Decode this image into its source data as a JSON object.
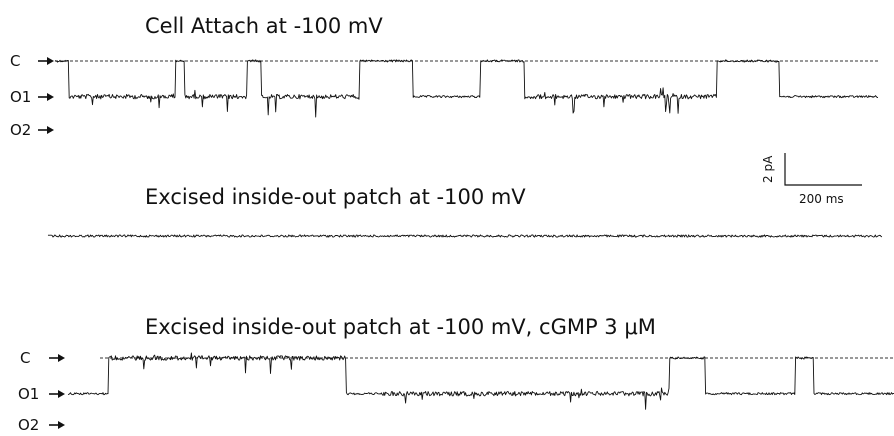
{
  "chart_data": [
    {
      "type": "line",
      "title": "Cell Attach at -100 mV",
      "levels": [
        "C",
        "O1",
        "O2"
      ],
      "level_current_pA": [
        0,
        -2.3,
        -4.6
      ],
      "segments_ms": [
        {
          "start": 0,
          "end": 30,
          "state": "C"
        },
        {
          "start": 30,
          "end": 270,
          "state": "O1",
          "noisy": true
        },
        {
          "start": 270,
          "end": 290,
          "state": "C"
        },
        {
          "start": 290,
          "end": 430,
          "state": "O1",
          "noisy": true
        },
        {
          "start": 430,
          "end": 460,
          "state": "C"
        },
        {
          "start": 460,
          "end": 680,
          "state": "O1",
          "noisy": true
        },
        {
          "start": 680,
          "end": 800,
          "state": "C"
        },
        {
          "start": 800,
          "end": 950,
          "state": "O1"
        },
        {
          "start": 950,
          "end": 1050,
          "state": "C"
        },
        {
          "start": 1050,
          "end": 1480,
          "state": "O1",
          "noisy": true
        },
        {
          "start": 1480,
          "end": 1620,
          "state": "C"
        },
        {
          "start": 1620,
          "end": 1840,
          "state": "O1"
        }
      ]
    },
    {
      "type": "line",
      "title": "Excised inside-out patch at -100 mV",
      "levels": [],
      "level_current_pA": [
        -2.3
      ],
      "segments_ms": [
        {
          "start": 0,
          "end": 1840,
          "state": "O1"
        }
      ]
    },
    {
      "type": "line",
      "title": "Excised inside-out patch at -100 mV, cGMP 3 μM",
      "levels": [
        "C",
        "O1",
        "O2"
      ],
      "level_current_pA": [
        0,
        -2.3,
        -4.6
      ],
      "segments_ms": [
        {
          "start": 0,
          "end": 90,
          "state": "O1"
        },
        {
          "start": 90,
          "end": 620,
          "state": "C",
          "noisy": true
        },
        {
          "start": 620,
          "end": 700,
          "state": "O1"
        },
        {
          "start": 700,
          "end": 1340,
          "state": "O1",
          "noisy": true
        },
        {
          "start": 1340,
          "end": 1420,
          "state": "C"
        },
        {
          "start": 1420,
          "end": 1620,
          "state": "O1"
        },
        {
          "start": 1620,
          "end": 1660,
          "state": "C"
        },
        {
          "start": 1660,
          "end": 1840,
          "state": "O1"
        }
      ]
    }
  ],
  "scale_bar": {
    "current_label": "2 pA",
    "time_label": "200 ms"
  }
}
